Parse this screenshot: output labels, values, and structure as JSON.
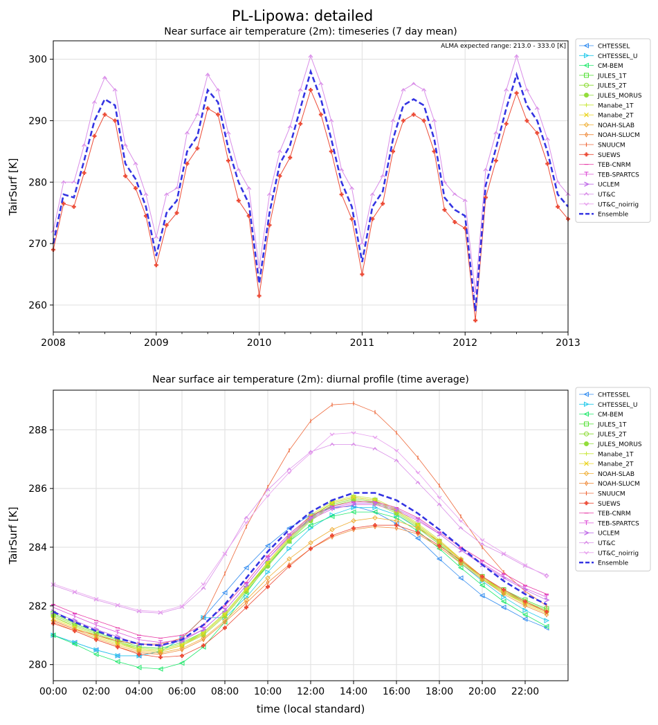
{
  "figure": {
    "title": "PL-Lipowa: detailed",
    "range_note": "ALMA expected range: 213.0 - 333.0 [K]"
  },
  "legend": [
    {
      "name": "CHTESSEL",
      "color": "#2f8bf0",
      "marker": "tri-left"
    },
    {
      "name": "CHTESSEL_U",
      "color": "#1fc8ea",
      "marker": "tri-right"
    },
    {
      "name": "CM-BEM",
      "color": "#1ee86a",
      "marker": "tri-left"
    },
    {
      "name": "JULES_1T",
      "color": "#4ddf2e",
      "marker": "square"
    },
    {
      "name": "JULES_2T",
      "color": "#86d92a",
      "marker": "hexagon"
    },
    {
      "name": "JULES_MORUS",
      "color": "#93dd3b",
      "marker": "hexagon-filled"
    },
    {
      "name": "Manabe_1T",
      "color": "#c9e83c",
      "marker": "star"
    },
    {
      "name": "Manabe_2T",
      "color": "#ead41e",
      "marker": "x"
    },
    {
      "name": "NOAH-SLAB",
      "color": "#efae32",
      "marker": "diamond"
    },
    {
      "name": "NOAH-SLUCM",
      "color": "#ef8a3a",
      "marker": "thin-diamond"
    },
    {
      "name": "SNUUCM",
      "color": "#ee6a3c",
      "marker": "vline"
    },
    {
      "name": "SUEWS",
      "color": "#ec4b36",
      "marker": "plus-filled"
    },
    {
      "name": "TEB-CNRM",
      "color": "#e73aa6",
      "marker": "hline"
    },
    {
      "name": "TEB-SPARTCS",
      "color": "#dd55d8",
      "marker": "tri-down-bar"
    },
    {
      "name": "UCLEM",
      "color": "#c06ee8",
      "marker": "caret-right"
    },
    {
      "name": "UT&C",
      "color": "#d98de8",
      "marker": "caret-up"
    },
    {
      "name": "UT&C_noirrig",
      "color": "#e7a0ee",
      "marker": "caret-down"
    },
    {
      "name": "Ensemble",
      "color": "#3434e2",
      "marker": "dashed"
    }
  ],
  "chart_data": [
    {
      "type": "line",
      "title": "Near surface air temperature (2m): timeseries (7 day mean)",
      "xlabel": "",
      "ylabel": "TairSurf [K]",
      "xlim": [
        2008,
        2013
      ],
      "ylim": [
        255.6,
        303.0
      ],
      "xticks": [
        "2008",
        "2009",
        "2010",
        "2011",
        "2012",
        "2013"
      ],
      "yticks": [
        260,
        270,
        280,
        290,
        300
      ],
      "grid": true,
      "legend_position": "outside-right",
      "x": [
        2008.0,
        2008.1,
        2008.2,
        2008.3,
        2008.4,
        2008.5,
        2008.6,
        2008.7,
        2008.8,
        2008.9,
        2009.0,
        2009.1,
        2009.2,
        2009.3,
        2009.4,
        2009.5,
        2009.6,
        2009.7,
        2009.8,
        2009.9,
        2010.0,
        2010.1,
        2010.2,
        2010.3,
        2010.4,
        2010.5,
        2010.6,
        2010.7,
        2010.8,
        2010.9,
        2011.0,
        2011.1,
        2011.2,
        2011.3,
        2011.4,
        2011.5,
        2011.6,
        2011.7,
        2011.8,
        2011.9,
        2012.0,
        2012.1,
        2012.2,
        2012.3,
        2012.4,
        2012.5,
        2012.6,
        2012.7,
        2012.8,
        2012.9,
        2013.0
      ],
      "series": [
        {
          "name": "Ensemble",
          "values": [
            270.0,
            278.0,
            277.5,
            283.5,
            290.0,
            293.5,
            292.5,
            283.0,
            280.5,
            276.0,
            268.0,
            275.0,
            277.0,
            285.0,
            287.5,
            295.0,
            293.0,
            285.5,
            280.0,
            276.5,
            263.5,
            275.0,
            283.0,
            286.0,
            292.0,
            298.0,
            293.5,
            287.0,
            280.0,
            276.0,
            267.0,
            276.0,
            278.5,
            287.0,
            292.5,
            293.5,
            292.5,
            287.0,
            277.5,
            275.5,
            274.5,
            259.0,
            279.5,
            285.5,
            292.0,
            297.5,
            292.5,
            290.0,
            285.0,
            278.0,
            276.0
          ]
        },
        {
          "name": "UT&C",
          "values": [
            272.0,
            280.0,
            280.0,
            286.0,
            293.0,
            297.0,
            295.0,
            286.0,
            283.0,
            278.0,
            271.0,
            278.0,
            279.0,
            288.0,
            291.0,
            297.5,
            295.0,
            288.0,
            282.0,
            279.0,
            266.0,
            278.0,
            285.0,
            289.0,
            295.0,
            300.5,
            296.0,
            290.0,
            282.0,
            279.0,
            270.0,
            278.0,
            281.0,
            290.0,
            295.0,
            296.0,
            295.0,
            290.0,
            280.0,
            278.0,
            277.0,
            262.0,
            282.0,
            288.0,
            295.0,
            300.5,
            295.0,
            292.0,
            287.0,
            280.0,
            278.0
          ]
        },
        {
          "name": "SUEWS",
          "values": [
            269.0,
            276.5,
            276.0,
            281.5,
            287.5,
            291.0,
            290.0,
            281.0,
            279.0,
            274.5,
            266.5,
            273.0,
            275.0,
            283.0,
            285.5,
            292.0,
            291.0,
            283.5,
            277.0,
            274.5,
            261.5,
            273.0,
            281.0,
            284.0,
            289.5,
            295.0,
            291.0,
            285.0,
            278.0,
            274.0,
            265.0,
            274.0,
            276.5,
            285.0,
            290.0,
            291.0,
            290.0,
            285.0,
            275.5,
            273.5,
            272.5,
            257.5,
            277.5,
            283.5,
            289.5,
            294.5,
            290.0,
            288.0,
            283.0,
            276.0,
            274.0
          ]
        }
      ]
    },
    {
      "type": "line",
      "title": "Near surface air temperature (2m): diurnal profile (time average)",
      "xlabel": "time (local standard)",
      "ylabel": "TairSurf [K]",
      "xlim": [
        0,
        24
      ],
      "ylim": [
        279.45,
        289.35
      ],
      "xticks": [
        "00:00",
        "02:00",
        "04:00",
        "06:00",
        "08:00",
        "10:00",
        "12:00",
        "14:00",
        "16:00",
        "18:00",
        "20:00",
        "22:00"
      ],
      "yticks": [
        280,
        282,
        284,
        286,
        288
      ],
      "grid": true,
      "legend_position": "outside-right",
      "x": [
        0,
        1,
        2,
        3,
        4,
        5,
        6,
        7,
        8,
        9,
        10,
        11,
        12,
        13,
        14,
        15,
        16,
        17,
        18,
        19,
        20,
        21,
        22,
        23
      ],
      "series": [
        {
          "name": "CHTESSEL",
          "values": [
            281.0,
            280.75,
            280.5,
            280.3,
            280.3,
            280.45,
            280.9,
            281.6,
            282.45,
            283.3,
            284.05,
            284.65,
            285.1,
            285.35,
            285.4,
            285.2,
            284.8,
            284.3,
            283.6,
            282.95,
            282.35,
            281.95,
            281.55,
            281.25
          ]
        },
        {
          "name": "CHTESSEL_U",
          "values": [
            281.0,
            280.75,
            280.5,
            280.3,
            280.3,
            280.45,
            280.9,
            281.6,
            281.6,
            282.3,
            283.15,
            283.95,
            284.65,
            285.1,
            285.35,
            285.35,
            285.1,
            284.65,
            284.1,
            283.45,
            282.85,
            282.3,
            281.85,
            281.5
          ]
        },
        {
          "name": "CM-BEM",
          "values": [
            281.0,
            280.7,
            280.35,
            280.1,
            279.9,
            279.85,
            280.05,
            280.6,
            281.45,
            282.45,
            283.4,
            284.2,
            284.75,
            285.05,
            285.2,
            285.2,
            285.0,
            284.55,
            283.95,
            283.3,
            282.7,
            282.15,
            281.7,
            281.3
          ]
        },
        {
          "name": "JULES_1T",
          "values": [
            281.75,
            281.4,
            281.1,
            280.85,
            280.6,
            280.55,
            280.75,
            281.1,
            281.75,
            282.6,
            283.45,
            284.3,
            285.0,
            285.5,
            285.7,
            285.6,
            285.25,
            284.75,
            284.2,
            283.55,
            283.0,
            282.55,
            282.2,
            281.9
          ]
        },
        {
          "name": "JULES_2T",
          "values": [
            281.7,
            281.35,
            281.05,
            280.8,
            280.55,
            280.5,
            280.7,
            281.05,
            281.7,
            282.55,
            283.4,
            284.25,
            284.95,
            285.45,
            285.65,
            285.55,
            285.2,
            284.7,
            284.15,
            283.5,
            282.95,
            282.5,
            282.15,
            281.85
          ]
        },
        {
          "name": "JULES_MORUS",
          "values": [
            281.65,
            281.3,
            281.0,
            280.75,
            280.5,
            280.45,
            280.65,
            281.0,
            281.65,
            282.5,
            283.35,
            284.2,
            284.9,
            285.4,
            285.6,
            285.5,
            285.15,
            284.65,
            284.1,
            283.45,
            282.9,
            282.45,
            282.1,
            281.8
          ]
        },
        {
          "name": "Manabe_1T",
          "values": [
            281.6,
            281.3,
            281.0,
            280.75,
            280.55,
            280.5,
            280.7,
            281.1,
            281.75,
            282.6,
            283.5,
            284.35,
            285.1,
            285.55,
            285.75,
            285.65,
            285.3,
            284.8,
            284.25,
            283.6,
            283.0,
            282.5,
            282.1,
            281.8
          ]
        },
        {
          "name": "Manabe_2T",
          "values": [
            281.55,
            281.25,
            280.95,
            280.7,
            280.5,
            280.45,
            280.65,
            281.05,
            281.7,
            282.55,
            283.45,
            284.3,
            285.05,
            285.5,
            285.7,
            285.6,
            285.25,
            284.75,
            284.2,
            283.55,
            282.95,
            282.45,
            282.05,
            281.75
          ]
        },
        {
          "name": "NOAH-SLAB",
          "values": [
            281.5,
            281.2,
            280.9,
            280.65,
            280.45,
            280.4,
            280.55,
            280.9,
            281.5,
            282.2,
            282.95,
            283.6,
            284.15,
            284.6,
            284.9,
            285.0,
            284.9,
            284.65,
            284.2,
            283.6,
            283.0,
            282.5,
            282.1,
            281.8
          ]
        },
        {
          "name": "NOAH-SLUCM",
          "values": [
            281.45,
            281.15,
            280.85,
            280.6,
            280.4,
            280.35,
            280.5,
            280.85,
            281.45,
            282.1,
            282.8,
            283.4,
            283.95,
            284.35,
            284.6,
            284.7,
            284.65,
            284.45,
            284.0,
            283.45,
            282.9,
            282.4,
            282.0,
            281.7
          ]
        },
        {
          "name": "SNUUCM",
          "values": [
            281.5,
            281.2,
            281.0,
            280.8,
            280.7,
            280.7,
            280.9,
            281.6,
            283.1,
            284.7,
            286.05,
            287.3,
            288.3,
            288.85,
            288.9,
            288.6,
            287.9,
            287.05,
            286.1,
            285.05,
            284.0,
            283.15,
            282.5,
            282.0
          ]
        },
        {
          "name": "SUEWS",
          "values": [
            281.4,
            281.15,
            280.85,
            280.6,
            280.35,
            280.25,
            280.3,
            280.65,
            281.25,
            281.95,
            282.65,
            283.35,
            283.95,
            284.4,
            284.65,
            284.75,
            284.75,
            284.5,
            284.05,
            283.55,
            283.0,
            282.55,
            282.15,
            281.8
          ]
        },
        {
          "name": "TEB-CNRM",
          "values": [
            282.05,
            281.75,
            281.5,
            281.25,
            281.0,
            280.9,
            281.0,
            281.35,
            282.0,
            282.8,
            283.7,
            284.45,
            285.05,
            285.4,
            285.55,
            285.55,
            285.35,
            285.0,
            284.5,
            284.0,
            283.55,
            283.1,
            282.7,
            282.4
          ]
        },
        {
          "name": "TEB-SPARTCS",
          "values": [
            281.95,
            281.65,
            281.35,
            281.1,
            280.85,
            280.75,
            280.85,
            281.2,
            281.85,
            282.7,
            283.6,
            284.35,
            284.95,
            285.3,
            285.45,
            285.45,
            285.25,
            284.9,
            284.45,
            283.9,
            283.45,
            283.0,
            282.6,
            282.3
          ]
        },
        {
          "name": "UCLEM",
          "values": [
            281.8,
            281.5,
            281.2,
            280.95,
            280.7,
            280.65,
            280.8,
            281.2,
            281.85,
            282.7,
            283.6,
            284.4,
            285.0,
            285.35,
            285.5,
            285.5,
            285.3,
            284.95,
            284.45,
            283.9,
            283.4,
            282.95,
            282.55,
            282.2
          ]
        },
        {
          "name": "UT&C",
          "values": [
            282.7,
            282.45,
            282.2,
            282.0,
            281.8,
            281.75,
            281.95,
            282.6,
            283.75,
            285.0,
            285.95,
            286.65,
            287.25,
            287.5,
            287.5,
            287.35,
            286.95,
            286.2,
            285.45,
            284.65,
            284.1,
            283.75,
            283.35,
            283.05
          ]
        },
        {
          "name": "UT&C_noirrig",
          "values": [
            282.75,
            282.5,
            282.25,
            282.05,
            281.85,
            281.8,
            282.0,
            282.75,
            283.8,
            284.85,
            285.75,
            286.55,
            287.2,
            287.85,
            287.9,
            287.75,
            287.3,
            286.55,
            285.7,
            284.9,
            284.25,
            283.8,
            283.4,
            283.0
          ]
        },
        {
          "name": "Ensemble",
          "values": [
            281.8,
            281.45,
            281.15,
            280.9,
            280.7,
            280.65,
            280.85,
            281.35,
            282.05,
            282.95,
            283.85,
            284.6,
            285.2,
            285.6,
            285.85,
            285.85,
            285.6,
            285.15,
            284.6,
            284.0,
            283.4,
            282.85,
            282.4,
            282.05
          ]
        }
      ]
    }
  ]
}
